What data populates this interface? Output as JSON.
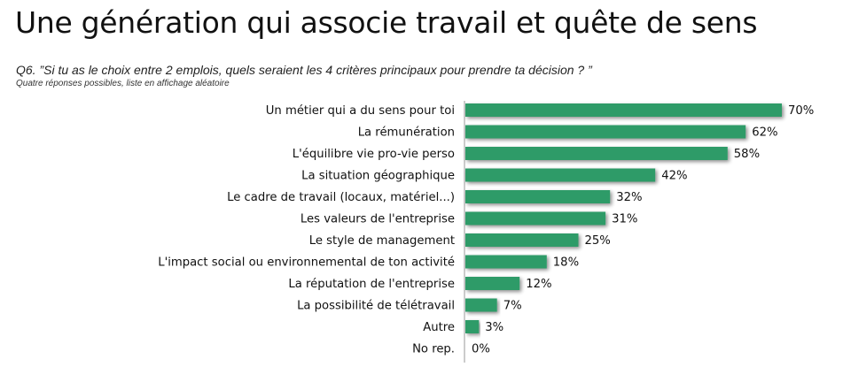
{
  "title": "Une génération qui associe travail et quête de sens",
  "question": "Q6. ”Si tu as le choix entre 2 emplois, quels seraient les 4 critères principaux pour prendre ta décision ? ”",
  "note": "Quatre réponses possibles, liste en affichage aléatoire",
  "colors": {
    "bar": "#2e9b68",
    "axis": "#9a9a9a",
    "shadow": "#c9c9c9"
  },
  "chart_data": {
    "type": "bar",
    "orientation": "horizontal",
    "xlim": [
      0,
      70
    ],
    "categories": [
      "Un métier qui a du sens pour toi",
      "La rémunération",
      "L'équilibre vie pro-vie perso",
      "La situation géographique",
      "Le cadre de travail (locaux, matériel...)",
      "Les valeurs de l'entreprise",
      "Le style de management",
      "L'impact social ou environnemental de ton activité",
      "La réputation de l'entreprise",
      "La possibilité de télétravail",
      "Autre",
      "No rep."
    ],
    "values": [
      70,
      62,
      58,
      42,
      32,
      31,
      25,
      18,
      12,
      7,
      3,
      0
    ],
    "value_labels": [
      "70%",
      "62%",
      "58%",
      "42%",
      "32%",
      "31%",
      "25%",
      "18%",
      "12%",
      "7%",
      "3%",
      "0%"
    ],
    "grid": false,
    "legend": "none"
  }
}
